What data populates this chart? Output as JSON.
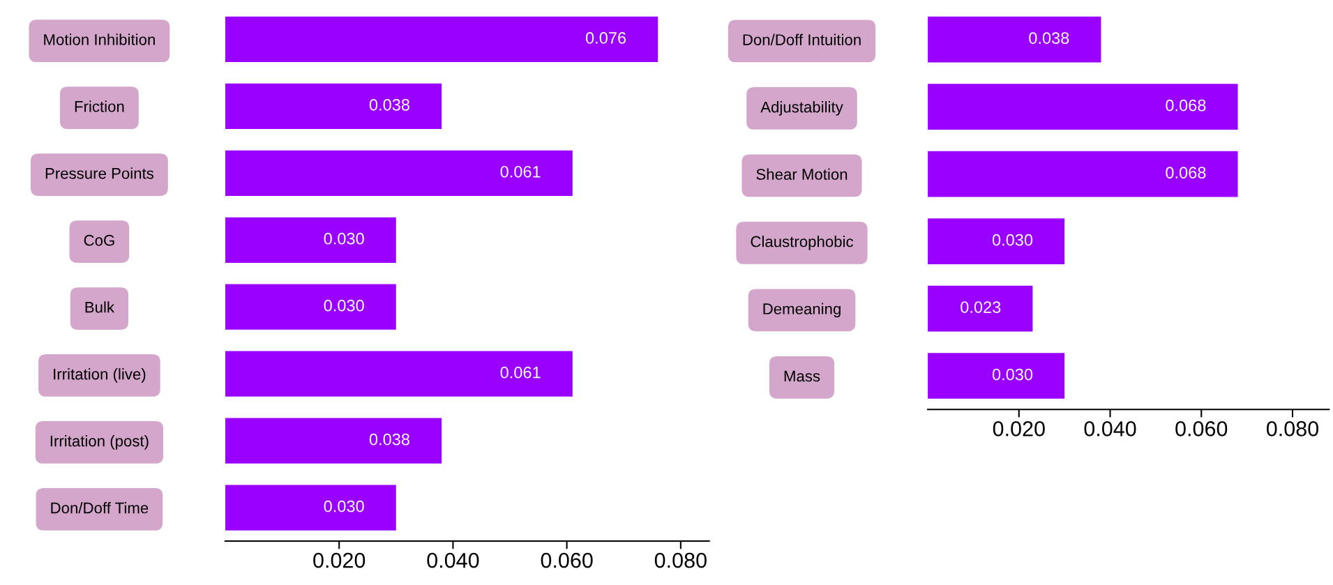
{
  "chart_data": [
    {
      "type": "bar",
      "orientation": "horizontal",
      "categories": [
        "Motion Inhibition",
        "Friction",
        "Pressure Points",
        "CoG",
        "Bulk",
        "Irritation (live)",
        "Irritation (post)",
        "Don/Doff Time"
      ],
      "values": [
        0.076,
        0.038,
        0.061,
        0.03,
        0.03,
        0.061,
        0.038,
        0.03
      ],
      "value_labels": [
        "0.076",
        "0.038",
        "0.061",
        "0.030",
        "0.030",
        "0.061",
        "0.038",
        "0.030"
      ],
      "color": "#9900ff",
      "xlim": [
        0,
        0.085
      ],
      "xticks": [
        {
          "value": 0.02,
          "label": "0.020"
        },
        {
          "value": 0.04,
          "label": "0.040"
        },
        {
          "value": 0.06,
          "label": "0.060"
        },
        {
          "value": 0.08,
          "label": "0.080"
        }
      ],
      "grid": false
    },
    {
      "type": "bar",
      "orientation": "horizontal",
      "categories": [
        "Don/Doff Intuition",
        "Adjustability",
        "Shear Motion",
        "Claustrophobic",
        "Demeaning",
        "Mass"
      ],
      "values": [
        0.038,
        0.068,
        0.068,
        0.03,
        0.023,
        0.03
      ],
      "value_labels": [
        "0.038",
        "0.068",
        "0.068",
        "0.030",
        "0.023",
        "0.030"
      ],
      "color": "#9900ff",
      "xlim": [
        0,
        0.088
      ],
      "xticks": [
        {
          "value": 0.02,
          "label": "0.020"
        },
        {
          "value": 0.04,
          "label": "0.040"
        },
        {
          "value": 0.06,
          "label": "0.060"
        },
        {
          "value": 0.08,
          "label": "0.080"
        }
      ],
      "grid": false
    }
  ]
}
